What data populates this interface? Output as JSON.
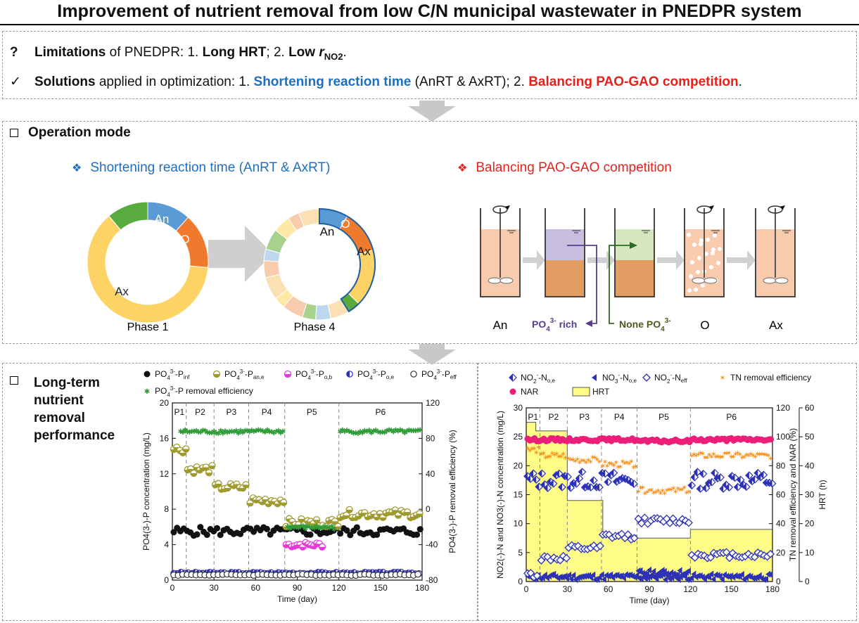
{
  "title": "Improvement of nutrient removal from low C/N municipal wastewater in PNEDPR system",
  "limitations": {
    "marker": "?",
    "lead": "Limitations",
    "text": " of PNEDPR: 1. ",
    "item1": "Long HRT",
    "sep": "; 2. ",
    "item2_prefix": "Low ",
    "item2_r": "r",
    "item2_sub": "NO2",
    "end": "."
  },
  "solutions": {
    "marker": "✓",
    "lead": "Solutions",
    "text": " applied in optimization: 1. ",
    "item1": "Shortening reaction time",
    "item1_paren": " (AnRT & AxRT); 2. ",
    "item2": "Balancing PAO-GAO competition",
    "end": "."
  },
  "operation": {
    "heading": "Operation mode",
    "left_title": "Shortening reaction time (AnRT & AxRT)",
    "right_title": "Balancing PAO-GAO competition",
    "phase1_caption": "Phase 1",
    "phase4_caption": "Phase 4",
    "labels": {
      "an": "An",
      "o": "O",
      "ax": "Ax"
    },
    "reactors": [
      "An",
      "O",
      "Ax"
    ],
    "po4_rich": "PO",
    "po4_rich_sup": "3-",
    "po4_rich_sub": "4",
    "po4_rich_tail": " rich",
    "none_po4": "None PO",
    "none_po4_sub": "4",
    "none_po4_sup": "3-"
  },
  "longterm": {
    "heading_lines": [
      "Long-term",
      "nutrient",
      "removal",
      "performance"
    ]
  },
  "colors": {
    "blue": "#1f6fc0",
    "red": "#e5211c",
    "ring_yellow": "#fdd365",
    "ring_orange": "#ef7a2e",
    "ring_blue": "#5b9bd5",
    "ring_green": "#5aab3d",
    "khaki": "#a09a2e",
    "magenta": "#e53bd6",
    "pink": "#ec1e79",
    "hrt": "#fefb86",
    "navy": "#2d31b5",
    "tn": "#f39423",
    "star": "#2e9c37"
  },
  "chart_data": [
    {
      "type": "scatter",
      "title": "",
      "xlabel": "Time (day)",
      "ylabel": "PO4(3-)-P concentration (mg/L)",
      "y2label": "PO4(3-)-P removal efficiency (%)",
      "xlim": [
        0,
        180
      ],
      "ylim": [
        0,
        20
      ],
      "y2lim": [
        -80,
        120
      ],
      "xticks": [
        "0",
        "30",
        "60",
        "90",
        "120",
        "150",
        "180"
      ],
      "yticks": [
        "0",
        "4",
        "8",
        "12",
        "16",
        "20"
      ],
      "y2ticks": [
        "-80",
        "-40",
        "0",
        "40",
        "80",
        "120"
      ],
      "phases": [
        "P1",
        "P2",
        "P3",
        "P4",
        "P5",
        "P6"
      ],
      "phase_bounds": [
        10,
        30,
        55,
        81,
        120
      ],
      "legend": [
        "PO4(3-)-Pinf",
        "PO4(3-)-Pan,e",
        "PO4(3-)-Po,b",
        "PO4(3-)-Po,e",
        "PO4(3-)-Peff",
        "PO4(3-)-P removal efficiency"
      ],
      "series": [
        {
          "name": "PO4(3-)-Pinf",
          "segments": [
            [
              0,
              180,
              5.5
            ]
          ]
        },
        {
          "name": "PO4(3-)-Pan,e",
          "segments": [
            [
              0,
              10,
              14.8
            ],
            [
              10,
              30,
              12.5
            ],
            [
              30,
              55,
              10.5
            ],
            [
              55,
              81,
              9.0
            ],
            [
              81,
              120,
              6.5
            ],
            [
              120,
              180,
              7.5
            ]
          ]
        },
        {
          "name": "PO4(3-)-Po,b",
          "segments": [
            [
              81,
              110,
              4.0
            ]
          ]
        },
        {
          "name": "PO4(3-)-Po,e",
          "segments": [
            [
              0,
              180,
              0.8
            ]
          ]
        },
        {
          "name": "PO4(3-)-Peff",
          "segments": [
            [
              0,
              180,
              0.6
            ]
          ]
        },
        {
          "name": "PO4(3-)-P removal efficiency",
          "axis": "y2",
          "segments": [
            [
              5,
              80,
              88
            ],
            [
              82,
              118,
              -20
            ],
            [
              120,
              180,
              88
            ]
          ]
        }
      ]
    },
    {
      "type": "scatter",
      "title": "",
      "xlabel": "Time (day)",
      "ylabel": "NO2(-)-N and NO3(-)-N concentration (mg/L)",
      "y2label": "TN removal efficiency and NAR (%)",
      "y3label": "HRT (h)",
      "xlim": [
        0,
        180
      ],
      "ylim": [
        0,
        30
      ],
      "y2lim": [
        0,
        120
      ],
      "y3lim": [
        0,
        60
      ],
      "xticks": [
        "0",
        "30",
        "60",
        "90",
        "120",
        "150",
        "180"
      ],
      "yticks": [
        "0",
        "5",
        "10",
        "15",
        "20",
        "25",
        "30"
      ],
      "y2ticks": [
        "0",
        "20",
        "40",
        "60",
        "80",
        "100",
        "120"
      ],
      "y3ticks": [
        "0",
        "10",
        "20",
        "30",
        "40",
        "50",
        "60"
      ],
      "phases": [
        "P1",
        "P2",
        "P3",
        "P4",
        "P5",
        "P6"
      ],
      "phase_bounds": [
        10,
        30,
        55,
        81,
        120
      ],
      "legend": [
        "NO2(-)-No,e",
        "NO3(-)-No,e",
        "NO2(-)-Neff",
        "TN removal efficiency",
        "NAR",
        "HRT"
      ],
      "hrt_steps": [
        [
          0,
          7,
          55
        ],
        [
          7,
          30,
          52
        ],
        [
          30,
          56,
          28
        ],
        [
          56,
          81,
          16
        ],
        [
          81,
          120,
          15
        ],
        [
          120,
          180,
          18
        ]
      ],
      "series": [
        {
          "name": "NO2(-)-No,e",
          "segments": [
            [
              0,
              80,
              17.5
            ],
            [
              120,
              180,
              17.5
            ]
          ]
        },
        {
          "name": "NO3(-)-No,e",
          "segments": [
            [
              0,
              180,
              0.8
            ],
            [
              81,
              120,
              1.5
            ]
          ]
        },
        {
          "name": "NO2(-)-Neff",
          "segments": [
            [
              0,
              10,
              1.2
            ],
            [
              10,
              30,
              4.0
            ],
            [
              30,
              55,
              5.7
            ],
            [
              55,
              81,
              7.8
            ],
            [
              81,
              120,
              10.5
            ],
            [
              120,
              180,
              4.6
            ]
          ]
        },
        {
          "name": "TN removal efficiency",
          "axis": "y2",
          "segments": [
            [
              0,
              10,
              91
            ],
            [
              10,
              30,
              87
            ],
            [
              30,
              55,
              84
            ],
            [
              55,
              81,
              81
            ],
            [
              81,
              120,
              63
            ],
            [
              120,
              180,
              87
            ]
          ]
        },
        {
          "name": "NAR",
          "axis": "y2",
          "segments": [
            [
              0,
              81,
              98
            ],
            [
              81,
              120,
              97
            ],
            [
              120,
              180,
              98
            ]
          ]
        }
      ]
    }
  ]
}
